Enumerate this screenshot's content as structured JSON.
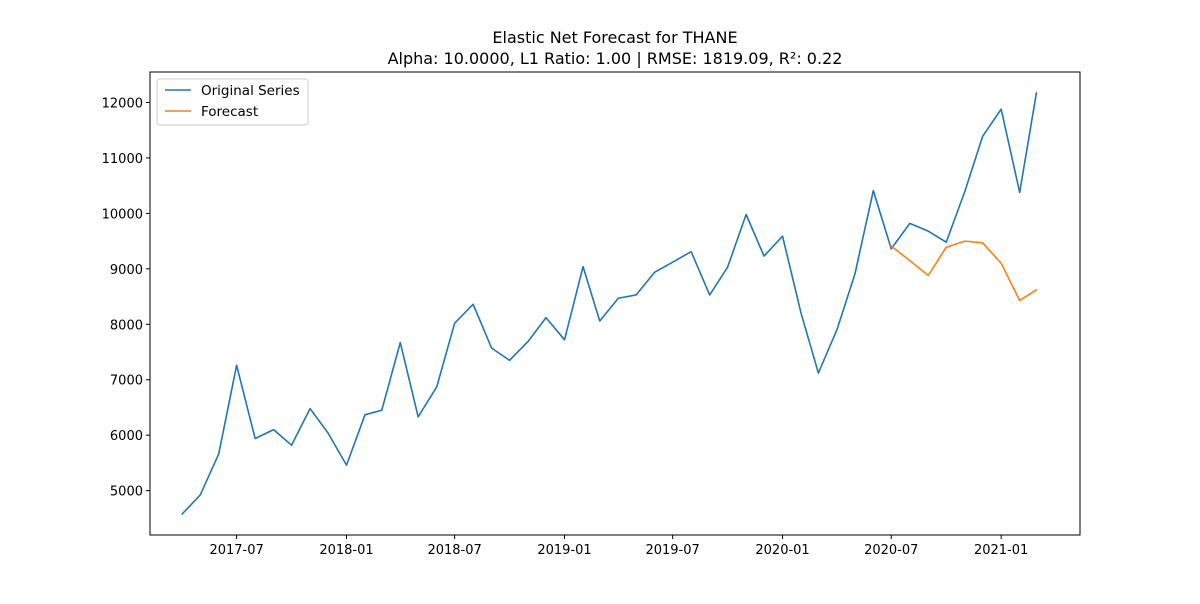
{
  "chart_data": {
    "type": "line",
    "title": "Elastic Net Forecast for THANE",
    "subtitle": "Alpha: 10.0000, L1 Ratio: 1.00 | RMSE: 1819.09, R²: 0.22",
    "xlabel": "",
    "ylabel": "",
    "x_ticks": [
      "2017-07",
      "2018-01",
      "2018-07",
      "2019-01",
      "2019-07",
      "2020-01",
      "2020-07",
      "2021-01"
    ],
    "y_ticks": [
      5000,
      6000,
      7000,
      8000,
      9000,
      10000,
      11000,
      12000
    ],
    "xlim": [
      "2017-02-06",
      "2021-05-13"
    ],
    "ylim": [
      4200,
      12550
    ],
    "grid": false,
    "legend_position": "top-left",
    "series": [
      {
        "name": "Original Series",
        "color": "#1f77b4",
        "x": [
          "2017-04",
          "2017-05",
          "2017-06",
          "2017-07",
          "2017-08",
          "2017-09",
          "2017-10",
          "2017-11",
          "2017-12",
          "2018-01",
          "2018-02",
          "2018-03",
          "2018-04",
          "2018-05",
          "2018-06",
          "2018-07",
          "2018-08",
          "2018-09",
          "2018-10",
          "2018-11",
          "2018-12",
          "2019-01",
          "2019-02",
          "2019-03",
          "2019-04",
          "2019-05",
          "2019-06",
          "2019-07",
          "2019-08",
          "2019-09",
          "2019-10",
          "2019-11",
          "2019-12",
          "2020-01",
          "2020-02",
          "2020-03",
          "2020-04",
          "2020-05",
          "2020-06",
          "2020-07",
          "2020-08",
          "2020-09",
          "2020-10",
          "2020-11",
          "2020-12",
          "2021-01",
          "2021-02",
          "2021-03"
        ],
        "values": [
          4580,
          4920,
          5660,
          7260,
          5940,
          6100,
          5820,
          6480,
          6040,
          5460,
          6370,
          6450,
          7670,
          6330,
          6870,
          8020,
          8360,
          7570,
          7350,
          7690,
          8120,
          7720,
          9040,
          8060,
          8470,
          8530,
          8940,
          9120,
          9310,
          8530,
          9030,
          9980,
          9230,
          9590,
          8200,
          7120,
          7900,
          8900,
          10410,
          9360,
          9820,
          9680,
          9480,
          10390,
          11390,
          11880,
          10380,
          12170
        ]
      },
      {
        "name": "Forecast",
        "color": "#ff7f0e",
        "x": [
          "2020-07",
          "2020-08",
          "2020-09",
          "2020-10",
          "2020-11",
          "2020-12",
          "2021-01",
          "2021-02",
          "2021-03"
        ],
        "values": [
          9410,
          9150,
          8880,
          9390,
          9500,
          9470,
          9100,
          8430,
          8620
        ]
      }
    ]
  }
}
